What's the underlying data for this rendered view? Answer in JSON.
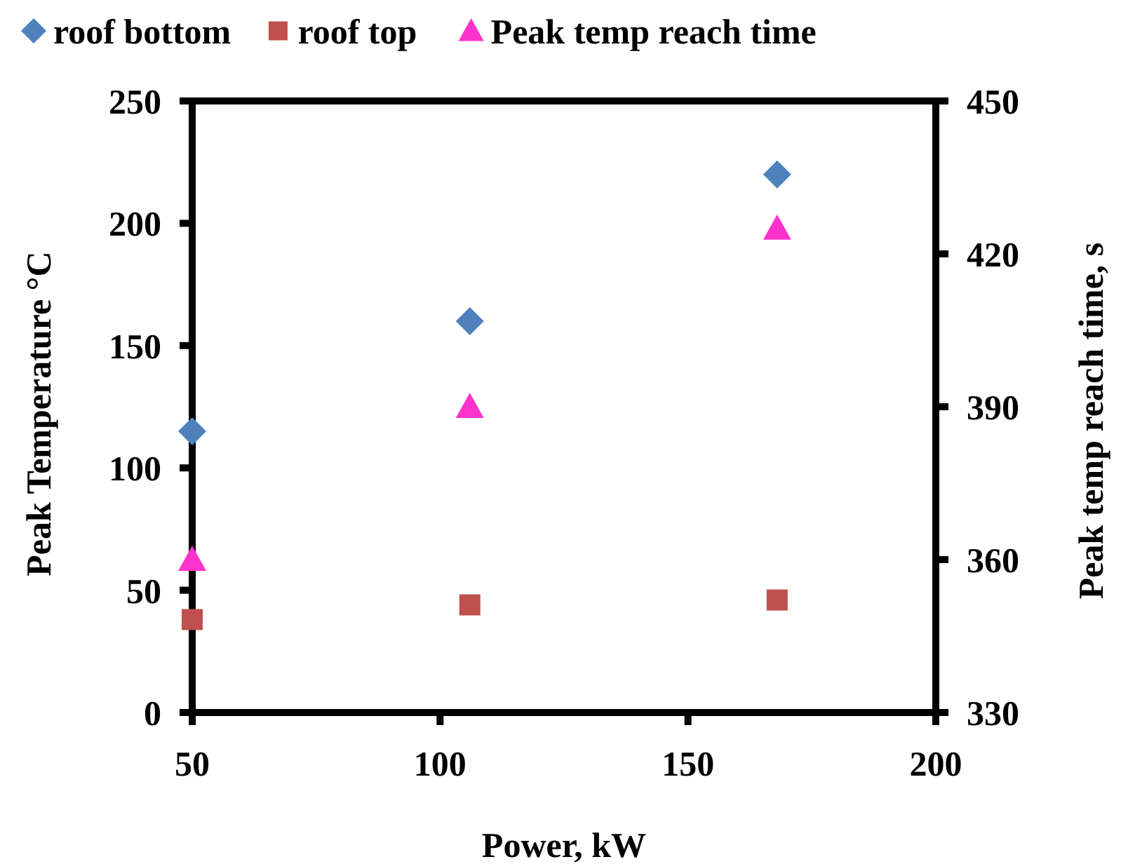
{
  "chart_data": {
    "type": "scatter",
    "xlabel": "Power, kW",
    "ylabel": "Peak Temperature °C",
    "y2label": "Peak temp reach time, s",
    "x": [
      50,
      106,
      168
    ],
    "series": [
      {
        "name": "roof bottom",
        "color": "#4f81bd",
        "marker": "diamond",
        "values": [
          115,
          160,
          220
        ]
      },
      {
        "name": "roof top",
        "color": "#c0504d",
        "marker": "square",
        "values": [
          38,
          44,
          46
        ]
      },
      {
        "name": "Peak temp reach time",
        "color": "#ff33cc",
        "marker": "triangle",
        "axis": "y2",
        "values": [
          360,
          390,
          425
        ]
      }
    ],
    "xlim": [
      50,
      200
    ],
    "xticks": [
      50,
      100,
      150,
      200
    ],
    "ylim": [
      0,
      250
    ],
    "yticks": [
      0,
      50,
      100,
      150,
      200,
      250
    ],
    "y2lim": [
      330,
      450
    ],
    "y2ticks": [
      330,
      360,
      390,
      420,
      450
    ],
    "grid": false,
    "legend": "top"
  }
}
